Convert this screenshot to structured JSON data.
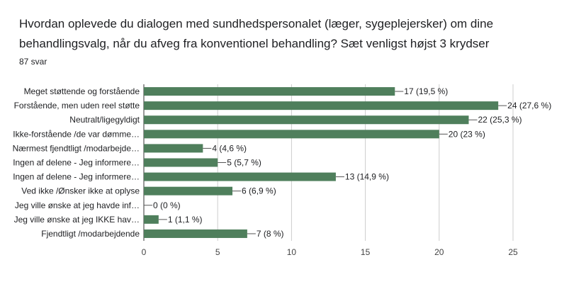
{
  "title": "Hvordan oplevede du dialogen med sundhedspersonalet (læger, sygeplejersker) om dine behandlingsvalg, når du afveg fra konventionel behandling? Sæt venligst højst 3 krydser",
  "subtitle": "87 svar",
  "chart_data": {
    "type": "bar",
    "orientation": "horizontal",
    "categories": [
      "Meget støttende og forstående",
      "Forstående, men uden reel støtte",
      "Neutralt/ligegyldigt",
      "Ikke-forstående /de var dømme…",
      "Nærmest fjendtligt /modarbejde…",
      "Ingen af delene - Jeg informere…",
      "Ingen af delene - Jeg informere…",
      "Ved ikke /Ønsker ikke at oplyse",
      "Jeg ville ønske at jeg havde inf…",
      "Jeg ville ønske at jeg IKKE hav…",
      "Fjendtligt /modarbejdende"
    ],
    "values": [
      17,
      24,
      22,
      20,
      4,
      5,
      13,
      6,
      0,
      1,
      7
    ],
    "value_labels": [
      "17 (19,5 %)",
      "24 (27,6 %)",
      "22 (25,3 %)",
      "20 (23 %)",
      "4 (4,6 %)",
      "5 (5,7 %)",
      "13 (14,9 %)",
      "6 (6,9 %)",
      "0 (0 %)",
      "1 (1,1 %)",
      "7 (8 %)"
    ],
    "xlim": [
      0,
      25
    ],
    "xticks": [
      0,
      5,
      10,
      15,
      20,
      25
    ],
    "bar_color": "#4f7f5c",
    "grid": true
  }
}
